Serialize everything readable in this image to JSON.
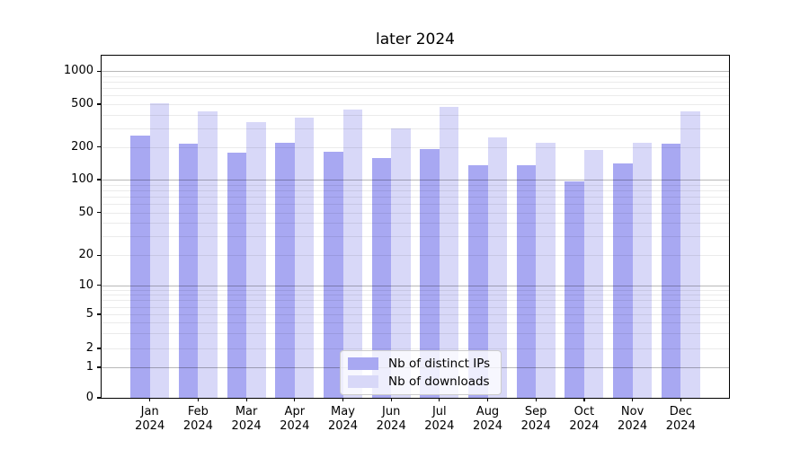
{
  "chart_data": {
    "type": "bar",
    "title": "later 2024",
    "categories": [
      "Jan 2024",
      "Feb 2024",
      "Mar 2024",
      "Apr 2024",
      "May 2024",
      "Jun 2024",
      "Jul 2024",
      "Aug 2024",
      "Sep 2024",
      "Oct 2024",
      "Nov 2024",
      "Dec 2024"
    ],
    "series": [
      {
        "name": "Nb of distinct IPs",
        "color": "#a8a8f2",
        "values": [
          255,
          215,
          178,
          220,
          181,
          158,
          192,
          136,
          136,
          96,
          140,
          215
        ]
      },
      {
        "name": "Nb of downloads",
        "color": "#d8d8f8",
        "values": [
          510,
          425,
          343,
          372,
          445,
          300,
          470,
          245,
          218,
          188,
          218,
          425
        ]
      }
    ],
    "xlabel": "",
    "ylabel": "",
    "yscale": "symlog",
    "yticks": [
      0,
      1,
      2,
      5,
      10,
      20,
      50,
      100,
      200,
      500,
      1000
    ],
    "ylim": [
      0,
      1400
    ],
    "grid": true,
    "grid_which": "both",
    "legend_position": "lower center",
    "colors": {
      "distinct_ips": "#a8a8f2",
      "downloads": "#d8d8f8",
      "major_grid": "rgba(0,0,0,0.28)",
      "minor_grid": "rgba(0,0,0,0.08)",
      "axis": "#000000",
      "background": "#ffffff"
    }
  }
}
